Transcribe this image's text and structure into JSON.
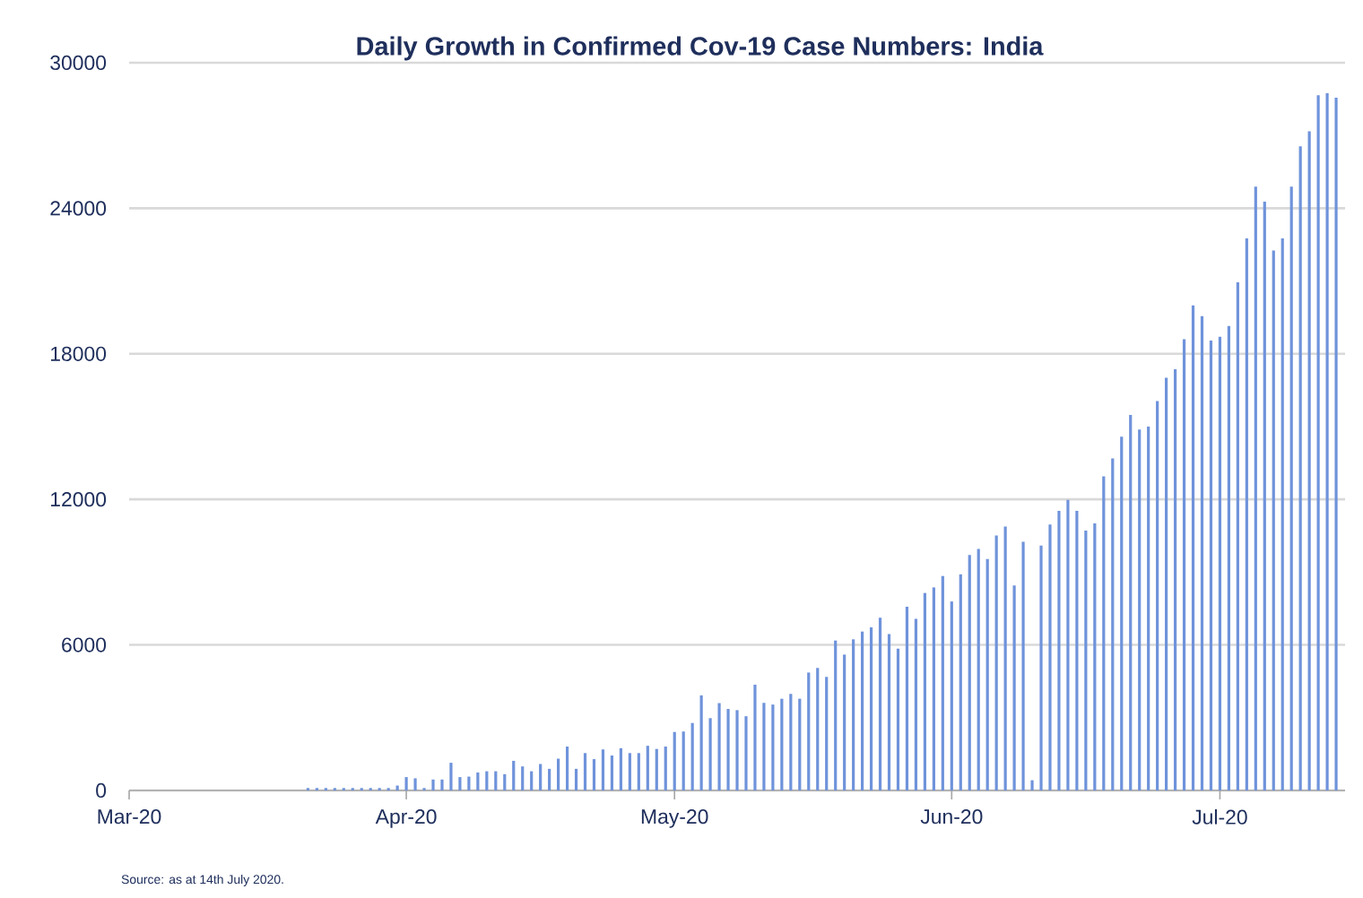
{
  "chart_data": {
    "type": "bar",
    "title": "Daily Growth in Confirmed Cov-19 Case Numbers: India",
    "annotations": [
      "Source: as at 14th July 2020."
    ],
    "x": [
      "2020-03-01",
      "2020-03-02",
      "2020-03-03",
      "2020-03-04",
      "2020-03-05",
      "2020-03-06",
      "2020-03-07",
      "2020-03-08",
      "2020-03-09",
      "2020-03-10",
      "2020-03-11",
      "2020-03-12",
      "2020-03-13",
      "2020-03-14",
      "2020-03-15",
      "2020-03-16",
      "2020-03-17",
      "2020-03-18",
      "2020-03-19",
      "2020-03-20",
      "2020-03-21",
      "2020-03-22",
      "2020-03-23",
      "2020-03-24",
      "2020-03-25",
      "2020-03-26",
      "2020-03-27",
      "2020-03-28",
      "2020-03-29",
      "2020-03-30",
      "2020-03-31",
      "2020-04-01",
      "2020-04-02",
      "2020-04-03",
      "2020-04-04",
      "2020-04-05",
      "2020-04-06",
      "2020-04-07",
      "2020-04-08",
      "2020-04-09",
      "2020-04-10",
      "2020-04-11",
      "2020-04-12",
      "2020-04-13",
      "2020-04-14",
      "2020-04-15",
      "2020-04-16",
      "2020-04-17",
      "2020-04-18",
      "2020-04-19",
      "2020-04-20",
      "2020-04-21",
      "2020-04-22",
      "2020-04-23",
      "2020-04-24",
      "2020-04-25",
      "2020-04-26",
      "2020-04-27",
      "2020-04-28",
      "2020-04-29",
      "2020-04-30",
      "2020-05-01",
      "2020-05-02",
      "2020-05-03",
      "2020-05-04",
      "2020-05-05",
      "2020-05-06",
      "2020-05-07",
      "2020-05-08",
      "2020-05-09",
      "2020-05-10",
      "2020-05-11",
      "2020-05-12",
      "2020-05-13",
      "2020-05-14",
      "2020-05-15",
      "2020-05-16",
      "2020-05-17",
      "2020-05-18",
      "2020-05-19",
      "2020-05-20",
      "2020-05-21",
      "2020-05-22",
      "2020-05-23",
      "2020-05-24",
      "2020-05-25",
      "2020-05-26",
      "2020-05-27",
      "2020-05-28",
      "2020-05-29",
      "2020-05-30",
      "2020-05-31",
      "2020-06-01",
      "2020-06-02",
      "2020-06-03",
      "2020-06-04",
      "2020-06-05",
      "2020-06-06",
      "2020-06-07",
      "2020-06-08",
      "2020-06-09",
      "2020-06-10",
      "2020-06-11",
      "2020-06-12",
      "2020-06-13",
      "2020-06-14",
      "2020-06-15",
      "2020-06-16",
      "2020-06-17",
      "2020-06-18",
      "2020-06-19",
      "2020-06-20",
      "2020-06-21",
      "2020-06-22",
      "2020-06-23",
      "2020-06-24",
      "2020-06-25",
      "2020-06-26",
      "2020-06-27",
      "2020-06-28",
      "2020-06-29",
      "2020-06-30",
      "2020-07-01",
      "2020-07-02",
      "2020-07-03",
      "2020-07-04",
      "2020-07-05",
      "2020-07-06",
      "2020-07-07",
      "2020-07-08",
      "2020-07-09",
      "2020-07-10",
      "2020-07-11",
      "2020-07-12",
      "2020-07-13",
      "2020-07-14"
    ],
    "values": [
      0,
      0,
      0,
      0,
      0,
      0,
      0,
      0,
      0,
      0,
      0,
      0,
      0,
      0,
      0,
      0,
      0,
      0,
      0,
      0,
      100,
      100,
      100,
      100,
      100,
      100,
      100,
      100,
      100,
      100,
      200,
      550,
      500,
      100,
      450,
      450,
      1140,
      550,
      570,
      740,
      790,
      790,
      670,
      1220,
      990,
      790,
      1090,
      890,
      1310,
      1810,
      890,
      1540,
      1290,
      1690,
      1440,
      1740,
      1540,
      1540,
      1840,
      1710,
      1810,
      2410,
      2430,
      2780,
      3920,
      2980,
      3600,
      3360,
      3310,
      3060,
      4360,
      3610,
      3540,
      3780,
      3980,
      3780,
      4860,
      5050,
      4680,
      6180,
      5600,
      6230,
      6550,
      6720,
      7120,
      6450,
      5850,
      7570,
      7070,
      8140,
      8370,
      8840,
      7790,
      8910,
      9710,
      9960,
      9540,
      10510,
      10880,
      8450,
      10250,
      420,
      10090,
      10960,
      11530,
      11980,
      11530,
      10710,
      11010,
      12950,
      13690,
      14580,
      15480,
      14880,
      15000,
      16050,
      17010,
      17360,
      18600,
      20000,
      19550,
      18550,
      18700,
      19150,
      20950,
      22760,
      24890,
      24270,
      22260,
      22760,
      24890,
      26550,
      27170,
      28660,
      28740,
      28560
    ],
    "color": "#6f93db",
    "xlim": [
      "2020-03-01",
      "2020-07-15"
    ],
    "xticks": [
      {
        "value": "2020-03-01",
        "label": "Mar-20"
      },
      {
        "value": "2020-04-01",
        "label": "Apr-20"
      },
      {
        "value": "2020-05-01",
        "label": "May-20"
      },
      {
        "value": "2020-06-01",
        "label": "Jun-20"
      },
      {
        "value": "2020-07-01",
        "label": "Jul-20"
      }
    ],
    "ylim": [
      0,
      30000
    ],
    "yticks": [
      0,
      6000,
      12000,
      18000,
      24000,
      30000
    ],
    "grid": "y"
  }
}
